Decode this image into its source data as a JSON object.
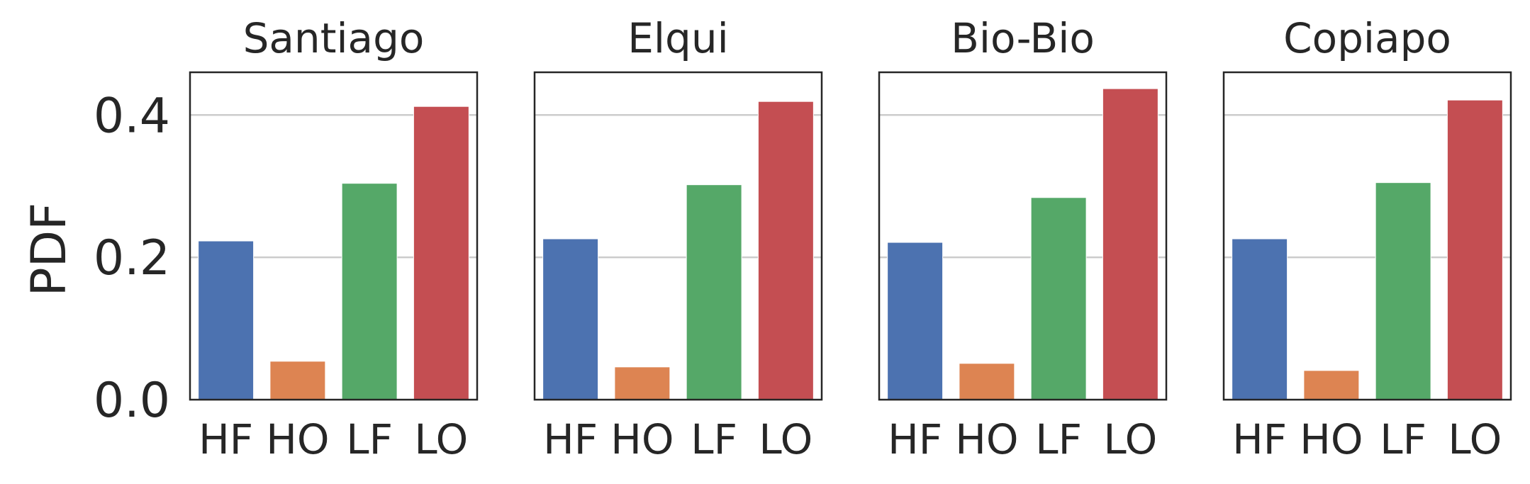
{
  "chart_data": {
    "type": "bar",
    "ylabel": "PDF",
    "ylim": [
      0,
      0.46
    ],
    "yticks": [
      "0.0",
      "0.2",
      "0.4"
    ],
    "ytick_values": [
      0,
      0.2,
      0.4
    ],
    "grid": "horizontal",
    "categories": [
      "HF",
      "HO",
      "LF",
      "LO"
    ],
    "colors": [
      "#4c72b0",
      "#dd8452",
      "#55a868",
      "#c44e52"
    ],
    "panels": [
      {
        "title": "Santiago",
        "values": [
          0.223,
          0.054,
          0.304,
          0.412
        ]
      },
      {
        "title": "Elqui",
        "values": [
          0.226,
          0.046,
          0.302,
          0.419
        ]
      },
      {
        "title": "Bio-Bio",
        "values": [
          0.221,
          0.051,
          0.284,
          0.437
        ]
      },
      {
        "title": "Copiapo",
        "values": [
          0.226,
          0.041,
          0.305,
          0.421
        ]
      }
    ]
  }
}
